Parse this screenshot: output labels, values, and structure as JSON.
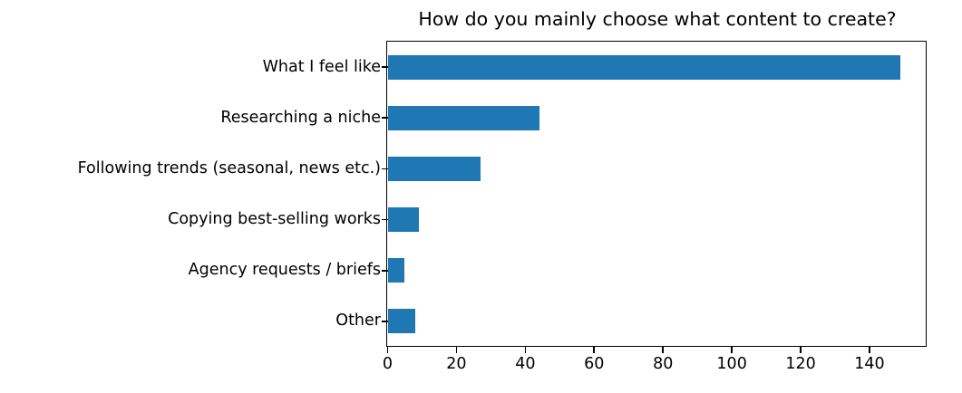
{
  "chart_data": {
    "type": "bar",
    "orientation": "horizontal",
    "title": "How do you mainly choose what content to create?",
    "categories": [
      "What I feel like",
      "Researching a niche",
      "Following trends (seasonal, news etc.)",
      "Copying best-selling works",
      "Agency requests / briefs",
      "Other"
    ],
    "values": [
      149,
      44,
      27,
      9,
      5,
      8
    ],
    "xlabel": "",
    "ylabel": "",
    "xlim": [
      0,
      156.6
    ],
    "xticks": [
      0,
      20,
      40,
      60,
      80,
      100,
      120,
      140
    ],
    "bar_color": "#1f77b4",
    "text_color": "#000000",
    "background_color": "#ffffff",
    "grid": false,
    "legend": "none"
  }
}
